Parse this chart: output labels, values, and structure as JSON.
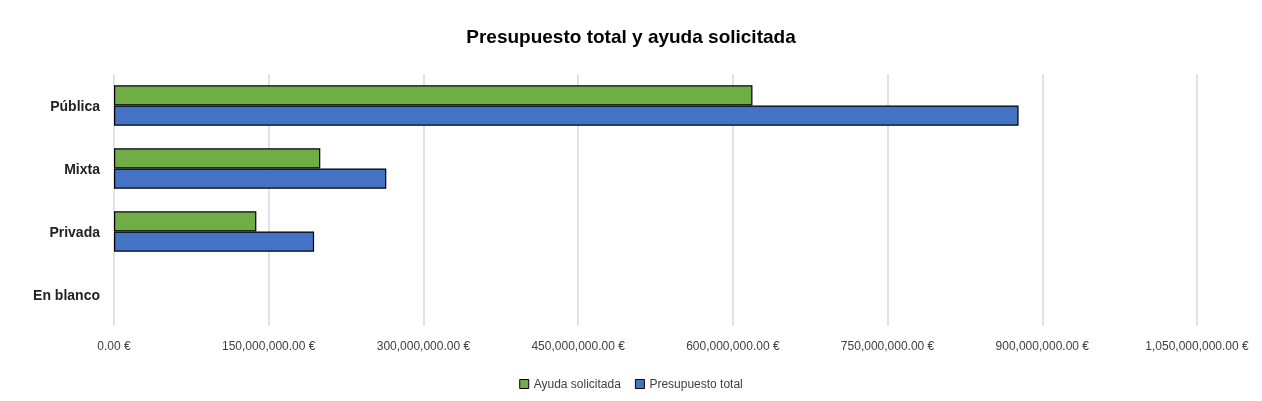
{
  "chart_data": {
    "type": "bar",
    "orientation": "horizontal",
    "title": "Presupuesto total y ayuda solicitada",
    "categories": [
      "Pública",
      "Mixta",
      "Privada",
      "En blanco"
    ],
    "series": [
      {
        "name": "Ayuda solicitada",
        "color": "#70ad47",
        "values": [
          619000000,
          200000000,
          138000000,
          null
        ]
      },
      {
        "name": "Presupuesto total",
        "color": "#4472c4",
        "values": [
          877000000,
          264000000,
          194000000,
          null
        ]
      }
    ],
    "xlim": [
      0,
      1050000000
    ],
    "xticks": [
      {
        "value": 0,
        "label": "0.00 €"
      },
      {
        "value": 150000000,
        "label": "150,000,000.00 €"
      },
      {
        "value": 300000000,
        "label": "300,000,000.00 €"
      },
      {
        "value": 450000000,
        "label": "450,000,000.00 €"
      },
      {
        "value": 600000000,
        "label": "600,000,000.00 €"
      },
      {
        "value": 750000000,
        "label": "750,000,000.00 €"
      },
      {
        "value": 900000000,
        "label": "900,000,000.00 €"
      },
      {
        "value": 1050000000,
        "label": "1,050,000,000.00 €"
      }
    ],
    "grid": "x",
    "legend": "bottom"
  }
}
